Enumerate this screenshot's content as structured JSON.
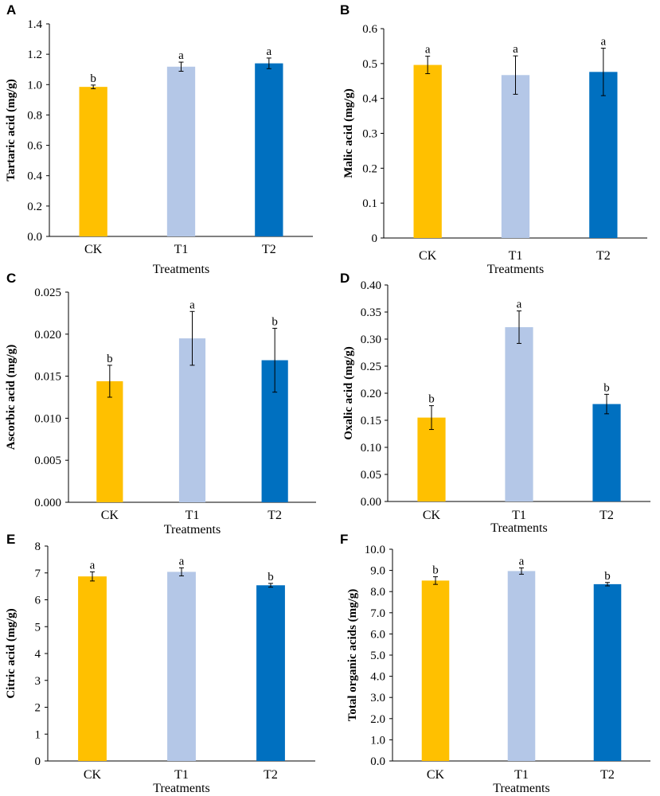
{
  "figure": {
    "colors": {
      "CK": "#FFC000",
      "T1": "#B4C7E7",
      "T2": "#0070C0"
    }
  },
  "chart_data": [
    {
      "panel": "A",
      "type": "bar",
      "categories": [
        "CK",
        "T1",
        "T2"
      ],
      "values": [
        0.985,
        1.118,
        1.14
      ],
      "errors": [
        0.012,
        0.03,
        0.035
      ],
      "significance": [
        "b",
        "a",
        "a"
      ],
      "title": "",
      "xlabel": "Treatments",
      "ylabel": "Tartaric acid (mg/g)",
      "ylim": [
        0,
        1.4
      ],
      "yticks": [
        "0.0",
        "0.2",
        "0.4",
        "0.6",
        "0.8",
        "1.0",
        "1.2",
        "1.4"
      ]
    },
    {
      "panel": "B",
      "type": "bar",
      "categories": [
        "CK",
        "T1",
        "T2"
      ],
      "values": [
        0.496,
        0.467,
        0.476
      ],
      "errors": [
        0.025,
        0.055,
        0.068
      ],
      "significance": [
        "a",
        "a",
        "a"
      ],
      "title": "",
      "xlabel": "Treatments",
      "ylabel": "Malic acid (mg/g)",
      "ylim": [
        0,
        0.6
      ],
      "yticks": [
        "0",
        "0.1",
        "0.2",
        "0.3",
        "0.4",
        "0.5",
        "0.6"
      ]
    },
    {
      "panel": "C",
      "type": "bar",
      "categories": [
        "CK",
        "T1",
        "T2"
      ],
      "values": [
        0.0144,
        0.0195,
        0.0169
      ],
      "errors": [
        0.0019,
        0.0032,
        0.0038
      ],
      "significance": [
        "b",
        "a",
        "b"
      ],
      "title": "",
      "xlabel": "Treatments",
      "ylabel": "Ascorbic acid (mg/g)",
      "ylim": [
        0,
        0.025
      ],
      "yticks": [
        "0.000",
        "0.005",
        "0.010",
        "0.015",
        "0.020",
        "0.025"
      ]
    },
    {
      "panel": "D",
      "type": "bar",
      "categories": [
        "CK",
        "T1",
        "T2"
      ],
      "values": [
        0.155,
        0.322,
        0.18
      ],
      "errors": [
        0.022,
        0.03,
        0.018
      ],
      "significance": [
        "b",
        "a",
        "b"
      ],
      "title": "",
      "xlabel": "Treatments",
      "ylabel": "Oxalic acid (mg/g)",
      "ylim": [
        0,
        0.4
      ],
      "yticks": [
        "0.00",
        "0.05",
        "0.10",
        "0.15",
        "0.20",
        "0.25",
        "0.30",
        "0.35",
        "0.40"
      ]
    },
    {
      "panel": "E",
      "type": "bar",
      "categories": [
        "CK",
        "T1",
        "T2"
      ],
      "values": [
        6.87,
        7.04,
        6.54
      ],
      "errors": [
        0.17,
        0.15,
        0.07
      ],
      "significance": [
        "a",
        "a",
        "b"
      ],
      "title": "",
      "xlabel": "Treatments",
      "ylabel": "Citric acid (mg/g)",
      "ylim": [
        0,
        8
      ],
      "yticks": [
        "0",
        "1",
        "2",
        "3",
        "4",
        "5",
        "6",
        "7",
        "8"
      ]
    },
    {
      "panel": "F",
      "type": "bar",
      "categories": [
        "CK",
        "T1",
        "T2"
      ],
      "values": [
        8.52,
        8.97,
        8.35
      ],
      "errors": [
        0.18,
        0.15,
        0.08
      ],
      "significance": [
        "b",
        "a",
        "b"
      ],
      "title": "",
      "xlabel": "Treatments",
      "ylabel": "Total organic acids (mg/g)",
      "ylim": [
        0,
        10
      ],
      "yticks": [
        "0.0",
        "1.0",
        "2.0",
        "3.0",
        "4.0",
        "5.0",
        "6.0",
        "7.0",
        "8.0",
        "9.0",
        "10.0"
      ]
    }
  ]
}
